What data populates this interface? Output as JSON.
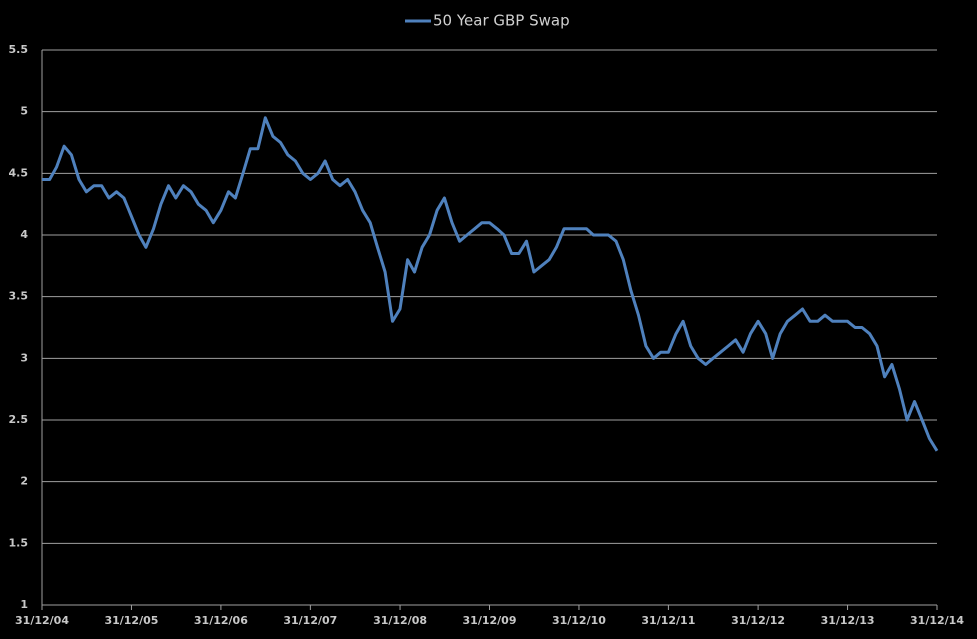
{
  "chart_data": {
    "type": "line",
    "x": [
      "2004-12-31",
      "2005-01-31",
      "2005-02-28",
      "2005-03-31",
      "2005-04-30",
      "2005-05-31",
      "2005-06-30",
      "2005-07-31",
      "2005-08-31",
      "2005-09-30",
      "2005-10-31",
      "2005-11-30",
      "2005-12-31",
      "2006-01-31",
      "2006-02-28",
      "2006-03-31",
      "2006-04-30",
      "2006-05-31",
      "2006-06-30",
      "2006-07-31",
      "2006-08-31",
      "2006-09-30",
      "2006-10-31",
      "2006-11-30",
      "2006-12-31",
      "2007-01-31",
      "2007-02-28",
      "2007-03-31",
      "2007-04-30",
      "2007-05-31",
      "2007-06-30",
      "2007-07-31",
      "2007-08-31",
      "2007-09-30",
      "2007-10-31",
      "2007-11-30",
      "2007-12-31",
      "2008-01-31",
      "2008-02-29",
      "2008-03-31",
      "2008-04-30",
      "2008-05-31",
      "2008-06-30",
      "2008-07-31",
      "2008-08-31",
      "2008-09-30",
      "2008-10-31",
      "2008-11-30",
      "2008-12-31",
      "2009-01-31",
      "2009-02-28",
      "2009-03-31",
      "2009-04-30",
      "2009-05-31",
      "2009-06-30",
      "2009-07-31",
      "2009-08-31",
      "2009-09-30",
      "2009-10-31",
      "2009-11-30",
      "2009-12-31",
      "2010-01-31",
      "2010-02-28",
      "2010-03-31",
      "2010-04-30",
      "2010-05-31",
      "2010-06-30",
      "2010-07-31",
      "2010-08-31",
      "2010-09-30",
      "2010-10-31",
      "2010-11-30",
      "2010-12-31",
      "2011-01-31",
      "2011-02-28",
      "2011-03-31",
      "2011-04-30",
      "2011-05-31",
      "2011-06-30",
      "2011-07-31",
      "2011-08-31",
      "2011-09-30",
      "2011-10-31",
      "2011-11-30",
      "2011-12-31",
      "2012-01-31",
      "2012-02-29",
      "2012-03-31",
      "2012-04-30",
      "2012-05-31",
      "2012-06-30",
      "2012-07-31",
      "2012-08-31",
      "2012-09-30",
      "2012-10-31",
      "2012-11-30",
      "2012-12-31",
      "2013-01-31",
      "2013-02-28",
      "2013-03-31",
      "2013-04-30",
      "2013-05-31",
      "2013-06-30",
      "2013-07-31",
      "2013-08-31",
      "2013-09-30",
      "2013-10-31",
      "2013-11-30",
      "2013-12-31",
      "2014-01-31",
      "2014-02-28",
      "2014-03-31",
      "2014-04-30",
      "2014-05-31",
      "2014-06-30",
      "2014-07-31",
      "2014-08-31",
      "2014-09-30",
      "2014-10-31",
      "2014-11-30",
      "2014-12-31"
    ],
    "series": [
      {
        "name": "50 Year GBP Swap",
        "color": "#4f81bd",
        "values": [
          4.45,
          4.45,
          4.55,
          4.72,
          4.65,
          4.45,
          4.35,
          4.4,
          4.4,
          4.3,
          4.35,
          4.3,
          4.15,
          4.0,
          3.9,
          4.05,
          4.25,
          4.4,
          4.3,
          4.4,
          4.35,
          4.25,
          4.2,
          4.1,
          4.2,
          4.35,
          4.3,
          4.5,
          4.7,
          4.7,
          4.95,
          4.8,
          4.75,
          4.65,
          4.6,
          4.5,
          4.45,
          4.5,
          4.6,
          4.45,
          4.4,
          4.45,
          4.35,
          4.2,
          4.1,
          3.9,
          3.7,
          3.3,
          3.4,
          3.8,
          3.7,
          3.9,
          4.0,
          4.2,
          4.3,
          4.1,
          3.95,
          4.0,
          4.05,
          4.1,
          4.1,
          4.05,
          4.0,
          3.85,
          3.85,
          3.95,
          3.7,
          3.75,
          3.8,
          3.9,
          4.05,
          4.05,
          4.05,
          4.05,
          4.0,
          4.0,
          4.0,
          3.95,
          3.8,
          3.55,
          3.35,
          3.1,
          3.0,
          3.05,
          3.05,
          3.2,
          3.3,
          3.1,
          3.0,
          2.95,
          3.0,
          3.05,
          3.1,
          3.15,
          3.05,
          3.2,
          3.3,
          3.2,
          3.0,
          3.2,
          3.3,
          3.35,
          3.4,
          3.3,
          3.3,
          3.35,
          3.3,
          3.3,
          3.3,
          3.25,
          3.25,
          3.2,
          3.1,
          2.85,
          2.95,
          2.75,
          2.5,
          2.65,
          2.5,
          2.35,
          2.25
        ]
      }
    ],
    "xlim": [
      "2004-12-31",
      "2014-12-31"
    ],
    "xticks": [
      {
        "value": "2004-12-31",
        "label": "31/12/04"
      },
      {
        "value": "2005-12-31",
        "label": "31/12/05"
      },
      {
        "value": "2006-12-31",
        "label": "31/12/06"
      },
      {
        "value": "2007-12-31",
        "label": "31/12/07"
      },
      {
        "value": "2008-12-31",
        "label": "31/12/08"
      },
      {
        "value": "2009-12-31",
        "label": "31/12/09"
      },
      {
        "value": "2010-12-31",
        "label": "31/12/10"
      },
      {
        "value": "2011-12-31",
        "label": "31/12/11"
      },
      {
        "value": "2012-12-31",
        "label": "31/12/12"
      },
      {
        "value": "2013-12-31",
        "label": "31/12/13"
      },
      {
        "value": "2014-12-31",
        "label": "31/12/14"
      }
    ],
    "ylim": [
      1,
      5.5
    ],
    "yticks": [
      1,
      1.5,
      2,
      2.5,
      3,
      3.5,
      4,
      4.5,
      5,
      5.5
    ],
    "grid": true,
    "legend": "top"
  }
}
